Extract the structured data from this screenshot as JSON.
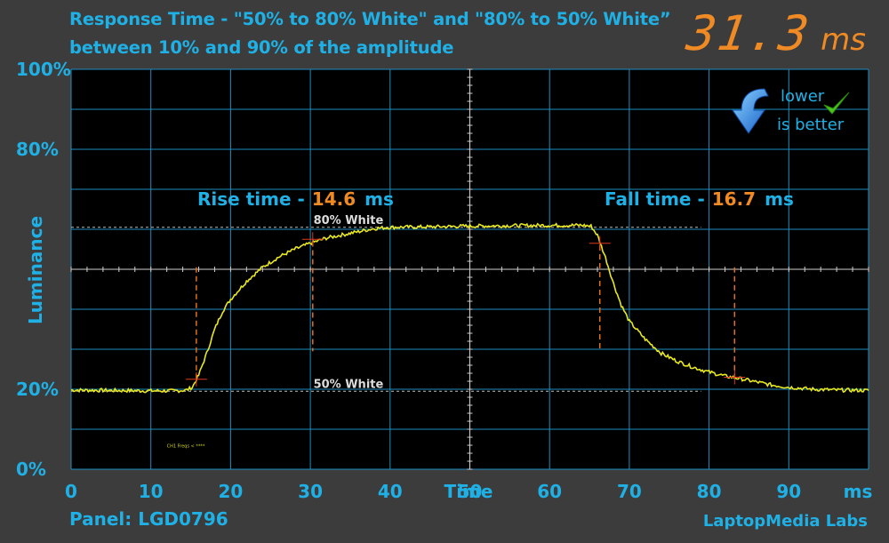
{
  "title_line1": "Response Time - \"50% to 80% White\" and \"80% to 50% White”",
  "title_line2": "between 10% and 90% of the amplitude",
  "total_value": "31.3",
  "total_unit": "ms",
  "badge": {
    "line1": "lower",
    "line2": "is better",
    "arrow_icon": "down-arrow-icon",
    "check_icon": "checkmark-icon"
  },
  "panel": "Panel: LGD0796",
  "credit": "LaptopMedia Labs",
  "rise": {
    "label": "Rise time -",
    "value": "14.6",
    "unit": "ms"
  },
  "fall": {
    "label": "Fall time -",
    "value": "16.7",
    "unit": "ms"
  },
  "colors": {
    "accent": "#1fb1e6",
    "value": "#f08a24",
    "trace": "#e8e820",
    "grid": "#1f8ec0",
    "marker": "#e0701c"
  },
  "chart_data": {
    "type": "line",
    "xlabel": "Time",
    "xunit": "ms",
    "ylabel": "Luminance",
    "xlim": [
      0,
      100
    ],
    "ylim": [
      0,
      100
    ],
    "x_ticks": [
      "0",
      "10",
      "20",
      "30",
      "40",
      "50",
      "60",
      "70",
      "80",
      "90"
    ],
    "y_ticks": [
      {
        "value": 0,
        "label": "0%"
      },
      {
        "value": 20,
        "label": "20%"
      },
      {
        "value": 80,
        "label": "80%"
      },
      {
        "value": 100,
        "label": "100%"
      }
    ],
    "reference_lines": [
      {
        "label": "80% White",
        "y": 60.5
      },
      {
        "label": "50% White",
        "y": 19.5
      }
    ],
    "markers": [
      {
        "x": 15.7,
        "y": 22.5
      },
      {
        "x": 30.3,
        "y": 57.5
      },
      {
        "x": 66.3,
        "y": 56.5
      },
      {
        "x": 83.2,
        "y": 23
      }
    ],
    "series": [
      {
        "x": [
          0,
          5,
          10,
          13,
          14.5,
          15.2,
          16,
          17,
          18,
          19,
          20,
          22,
          24,
          26,
          28,
          30,
          32,
          35,
          38,
          40,
          45,
          50,
          55,
          60,
          64,
          65.2,
          66,
          67,
          68,
          69,
          70,
          72,
          74,
          76,
          78,
          80,
          82,
          84,
          86,
          88,
          90,
          93,
          96,
          100
        ],
        "y": [
          19.8,
          19.7,
          19.6,
          19.6,
          19.8,
          20.5,
          23.5,
          29,
          35,
          39.5,
          42.5,
          47,
          50.5,
          53,
          55,
          56.5,
          57.8,
          59,
          60.2,
          60.5,
          60.6,
          60.8,
          60.9,
          61,
          61,
          60.8,
          58.5,
          53,
          46.5,
          41,
          37,
          32.5,
          29,
          27,
          25.5,
          24.3,
          23.3,
          22.6,
          21.8,
          21,
          20.5,
          20,
          19.8,
          19.7
        ]
      }
    ],
    "grid": true,
    "annotation_small": "CH1 Freqs < ****"
  }
}
